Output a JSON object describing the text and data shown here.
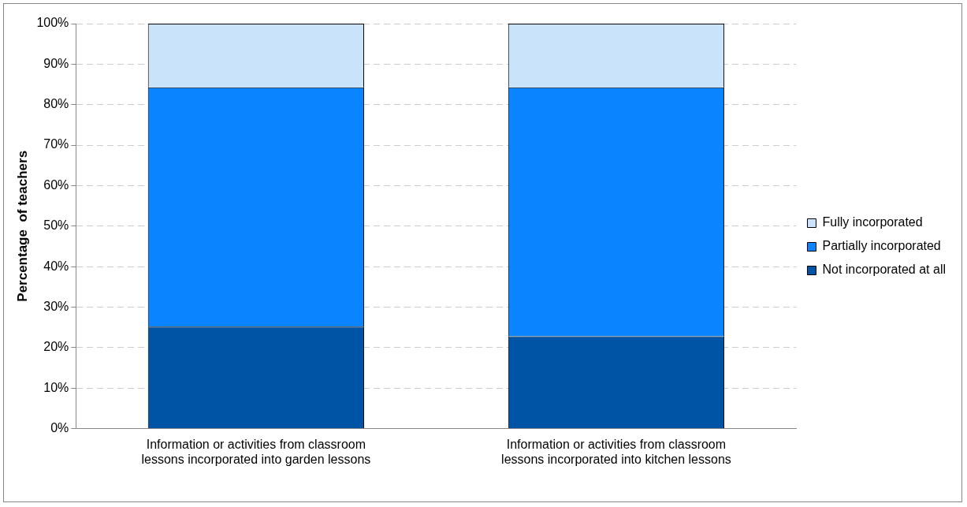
{
  "chart_data": {
    "type": "bar",
    "stacked": true,
    "ylabel": "Percentage  of teachers",
    "categories": [
      "Information or activities from classroom lessons incorporated into garden lessons",
      "Information or activities from classroom lessons incorporated into kitchen lessons"
    ],
    "series": [
      {
        "name": "Not incorporated at all",
        "color": "#0054a6",
        "values": [
          25.2,
          22.8
        ]
      },
      {
        "name": "Partially incorporated",
        "color": "#0a84ff",
        "values": [
          59.1,
          61.5
        ]
      },
      {
        "name": "Fully incorporated",
        "color": "#c8e3fa",
        "values": [
          15.7,
          15.7
        ]
      }
    ],
    "ylim": [
      0,
      100
    ],
    "yticks": [
      {
        "value": 0,
        "label": "0%"
      },
      {
        "value": 10,
        "label": "10%"
      },
      {
        "value": 20,
        "label": "20%"
      },
      {
        "value": 30,
        "label": "30%"
      },
      {
        "value": 40,
        "label": "40%"
      },
      {
        "value": 50,
        "label": "50%"
      },
      {
        "value": 60,
        "label": "60%"
      },
      {
        "value": 70,
        "label": "70%"
      },
      {
        "value": 80,
        "label": "80%"
      },
      {
        "value": 90,
        "label": "90%"
      },
      {
        "value": 100,
        "label": "100%"
      }
    ],
    "grid": "y",
    "legend": "right"
  }
}
